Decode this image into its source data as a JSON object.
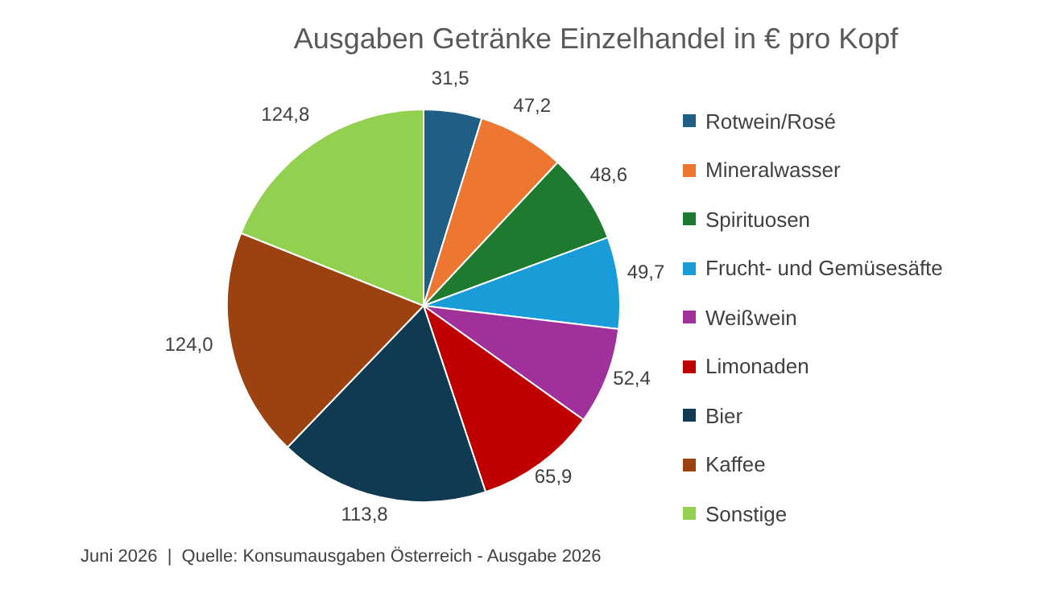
{
  "chart_data": {
    "type": "pie",
    "title": "Ausgaben Getränke Einzelhandel in € pro Kopf",
    "categories": [
      "Rotwein/Rosé",
      "Mineralwasser",
      "Spirituosen",
      "Frucht- und Gemüsesäfte",
      "Weißwein",
      "Limonaden",
      "Bier",
      "Kaffee",
      "Sonstige"
    ],
    "values": [
      31.5,
      47.2,
      48.6,
      49.7,
      52.4,
      65.9,
      113.8,
      124.0,
      124.8
    ],
    "colors": [
      "#1f5f86",
      "#ed7731",
      "#1e7a2e",
      "#1a9cd8",
      "#a0309a",
      "#c00000",
      "#103a52",
      "#9c4211",
      "#92d050"
    ],
    "value_labels": [
      "31,5",
      "47,2",
      "48,6",
      "49,7",
      "52,4",
      "65,9",
      "113,8",
      "124,0",
      "124,8"
    ],
    "legend": "right",
    "annotations": [
      "Juni 2026  |  Quelle: Konsumausgaben Österreich - Ausgabe 2026"
    ]
  }
}
